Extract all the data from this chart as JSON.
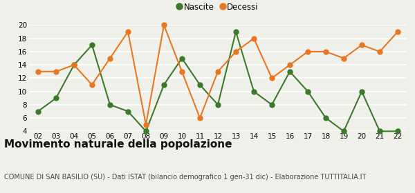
{
  "years": [
    "02",
    "03",
    "04",
    "05",
    "06",
    "07",
    "08",
    "09",
    "10",
    "11",
    "12",
    "13",
    "14",
    "15",
    "16",
    "17",
    "18",
    "19",
    "20",
    "21",
    "22"
  ],
  "nascite": [
    7,
    9,
    14,
    17,
    8,
    7,
    4,
    11,
    15,
    11,
    8,
    19,
    10,
    8,
    13,
    10,
    6,
    4,
    10,
    4,
    4
  ],
  "decessi": [
    13,
    13,
    14,
    11,
    15,
    19,
    5,
    20,
    13,
    6,
    13,
    16,
    18,
    12,
    14,
    16,
    16,
    15,
    17,
    16,
    19
  ],
  "nascite_color": "#3a7a2a",
  "decessi_color": "#e87722",
  "bg_color": "#f0f0eb",
  "grid_color": "#ffffff",
  "ylim_min": 4,
  "ylim_max": 20,
  "yticks": [
    4,
    6,
    8,
    10,
    12,
    14,
    16,
    18,
    20
  ],
  "title": "Movimento naturale della popolazione",
  "subtitle": "COMUNE DI SAN BASILIO (SU) - Dati ISTAT (bilancio demografico 1 gen-31 dic) - Elaborazione TUTTITALIA.IT",
  "legend_nascite": "Nascite",
  "legend_decessi": "Decessi",
  "marker_size": 5,
  "line_width": 1.5,
  "title_fontsize": 11,
  "subtitle_fontsize": 7
}
